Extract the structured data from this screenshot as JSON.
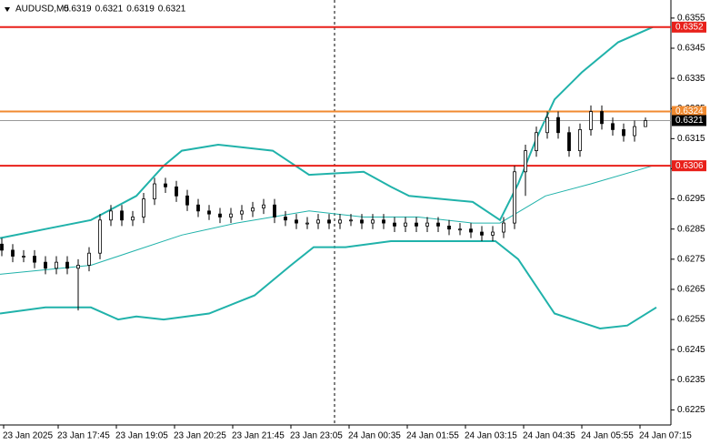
{
  "chart_data": {
    "type": "candlestick",
    "title": "AUDUSD,M5",
    "header_values": [
      0.6319,
      0.6321,
      0.6319,
      0.6321
    ],
    "xlim": [
      0,
      184.5
    ],
    "ylim": [
      0.622,
      0.6361
    ],
    "yticks": [
      0.6355,
      0.6345,
      0.6335,
      0.6325,
      0.6315,
      0.6305,
      0.6295,
      0.6285,
      0.6275,
      0.6265,
      0.6255,
      0.6245,
      0.6235,
      0.6225
    ],
    "xticks": [
      {
        "value": 1,
        "label": "23 Jan 2025"
      },
      {
        "value": 16,
        "label": "23 Jan 17:45"
      },
      {
        "value": 32,
        "label": "23 Jan 19:05"
      },
      {
        "value": 48,
        "label": "23 Jan 20:25"
      },
      {
        "value": 64,
        "label": "23 Jan 21:45"
      },
      {
        "value": 80,
        "label": "23 Jan 23:05"
      },
      {
        "value": 96,
        "label": "24 Jan 00:35"
      },
      {
        "value": 112,
        "label": "24 Jan 01:55"
      },
      {
        "value": 128,
        "label": "24 Jan 03:15"
      },
      {
        "value": 144,
        "label": "24 Jan 04:35"
      },
      {
        "value": 160,
        "label": "24 Jan 05:55"
      },
      {
        "value": 176,
        "label": "24 Jan 07:15"
      }
    ],
    "candles": {
      "x": [
        0,
        3,
        6,
        9,
        12,
        15,
        18,
        21,
        24,
        27,
        30,
        33,
        36,
        39,
        42,
        45,
        48,
        51,
        54,
        57,
        60,
        63,
        66,
        69,
        72,
        75,
        78,
        81,
        84,
        87,
        90,
        93,
        96,
        99,
        102,
        105,
        108,
        111,
        114,
        117,
        120,
        123,
        126,
        129,
        132,
        135,
        138,
        141,
        144,
        147,
        150,
        153,
        156,
        159,
        162,
        165,
        168,
        171,
        174,
        177
      ],
      "open": [
        0.628,
        0.6278,
        0.6276,
        0.6276,
        0.6274,
        0.6272,
        0.6274,
        0.6272,
        0.6273,
        0.6277,
        0.6288,
        0.6291,
        0.6288,
        0.6289,
        0.6295,
        0.63,
        0.6299,
        0.6296,
        0.6293,
        0.6291,
        0.629,
        0.6289,
        0.629,
        0.6291,
        0.6292,
        0.6293,
        0.6289,
        0.6288,
        0.6287,
        0.6287,
        0.6288,
        0.6287,
        0.6288,
        0.6288,
        0.6287,
        0.6288,
        0.6287,
        0.6286,
        0.6287,
        0.6286,
        0.6287,
        0.6286,
        0.6285,
        0.6285,
        0.6284,
        0.6283,
        0.6284,
        0.6287,
        0.6304,
        0.6311,
        0.6317,
        0.6322,
        0.6317,
        0.6311,
        0.6318,
        0.6324,
        0.632,
        0.6318,
        0.6316,
        0.6319
      ],
      "high": [
        0.6282,
        0.628,
        0.6278,
        0.6278,
        0.6276,
        0.6276,
        0.6276,
        0.6275,
        0.6279,
        0.629,
        0.6293,
        0.6293,
        0.6291,
        0.6297,
        0.6302,
        0.6302,
        0.6301,
        0.6298,
        0.6295,
        0.6293,
        0.6292,
        0.6292,
        0.6293,
        0.6294,
        0.6295,
        0.6295,
        0.6291,
        0.629,
        0.6289,
        0.629,
        0.629,
        0.629,
        0.629,
        0.629,
        0.629,
        0.629,
        0.6289,
        0.6289,
        0.6289,
        0.6289,
        0.6289,
        0.6288,
        0.6287,
        0.6287,
        0.6286,
        0.6286,
        0.6289,
        0.6306,
        0.6313,
        0.6319,
        0.6324,
        0.6324,
        0.6319,
        0.632,
        0.6326,
        0.6326,
        0.6322,
        0.632,
        0.6321,
        0.6322
      ],
      "low": [
        0.6276,
        0.6274,
        0.6274,
        0.6272,
        0.627,
        0.627,
        0.627,
        0.6258,
        0.6271,
        0.6275,
        0.6286,
        0.6286,
        0.6286,
        0.6287,
        0.6293,
        0.6297,
        0.6294,
        0.6291,
        0.6289,
        0.6288,
        0.6287,
        0.6287,
        0.6288,
        0.6289,
        0.629,
        0.6287,
        0.6286,
        0.6285,
        0.6285,
        0.6285,
        0.6285,
        0.6285,
        0.6286,
        0.6285,
        0.6285,
        0.6285,
        0.6284,
        0.6284,
        0.6284,
        0.6284,
        0.6284,
        0.6283,
        0.6283,
        0.6282,
        0.6281,
        0.6281,
        0.6282,
        0.6285,
        0.6296,
        0.6309,
        0.6315,
        0.6315,
        0.6309,
        0.6309,
        0.6316,
        0.6318,
        0.6316,
        0.6314,
        0.6314,
        0.6319
      ],
      "close": [
        0.6278,
        0.6276,
        0.6276,
        0.6274,
        0.6272,
        0.6274,
        0.6272,
        0.6273,
        0.6277,
        0.6288,
        0.6291,
        0.6288,
        0.6289,
        0.6295,
        0.63,
        0.6299,
        0.6296,
        0.6293,
        0.6291,
        0.629,
        0.6289,
        0.629,
        0.6291,
        0.6292,
        0.6293,
        0.6289,
        0.6288,
        0.6287,
        0.6287,
        0.6288,
        0.6287,
        0.6288,
        0.6288,
        0.6287,
        0.6288,
        0.6287,
        0.6286,
        0.6287,
        0.6286,
        0.6287,
        0.6286,
        0.6285,
        0.6285,
        0.6284,
        0.6283,
        0.6284,
        0.6287,
        0.6304,
        0.6311,
        0.6317,
        0.6322,
        0.6317,
        0.6311,
        0.6318,
        0.6324,
        0.632,
        0.6318,
        0.6316,
        0.6319,
        0.6321
      ]
    },
    "series": [
      {
        "color": "#20b2aa",
        "x": [
          0,
          12.5,
          25,
          37.5,
          45,
          50,
          60,
          75,
          85,
          100,
          107.5,
          112.5,
          130,
          137.5,
          142.5,
          147.5,
          152.5,
          160,
          170,
          179.5
        ],
        "values": [
          0.6282,
          0.6285,
          0.6288,
          0.6296,
          0.6306,
          0.6311,
          0.6313,
          0.6311,
          0.6303,
          0.6304,
          0.6299,
          0.6296,
          0.6294,
          0.6288,
          0.63,
          0.6315,
          0.6328,
          0.6337,
          0.6347,
          0.6352
        ]
      },
      {
        "color": "#20b2aa",
        "x": [
          0,
          25,
          37.5,
          50,
          65,
          85,
          100,
          115,
          130,
          137.5,
          150,
          162.5,
          179.5
        ],
        "values": [
          0.627,
          0.6273,
          0.6278,
          0.6283,
          0.6287,
          0.6291,
          0.6289,
          0.6289,
          0.6287,
          0.6287,
          0.6296,
          0.63,
          0.6306
        ]
      },
      {
        "color": "#20b2aa",
        "x": [
          0,
          12.5,
          25,
          32.5,
          37.5,
          45,
          57.5,
          70,
          80,
          86.25,
          95,
          107.5,
          120,
          136.25,
          142.5,
          152.5,
          165,
          172.5,
          180.5
        ],
        "values": [
          0.6257,
          0.6259,
          0.6259,
          0.6255,
          0.6256,
          0.6255,
          0.6257,
          0.6263,
          0.6273,
          0.6279,
          0.6279,
          0.6281,
          0.6281,
          0.6281,
          0.6275,
          0.6257,
          0.6252,
          0.6253,
          0.6259
        ]
      }
    ],
    "levels": [
      {
        "value": 0.6352,
        "color": "#e8201a"
      },
      {
        "value": 0.6324,
        "color": "#f08a30"
      },
      {
        "value": 0.6321,
        "color": "#9a9a9a"
      },
      {
        "value": 0.6306,
        "color": "#e8201a"
      }
    ]
  }
}
